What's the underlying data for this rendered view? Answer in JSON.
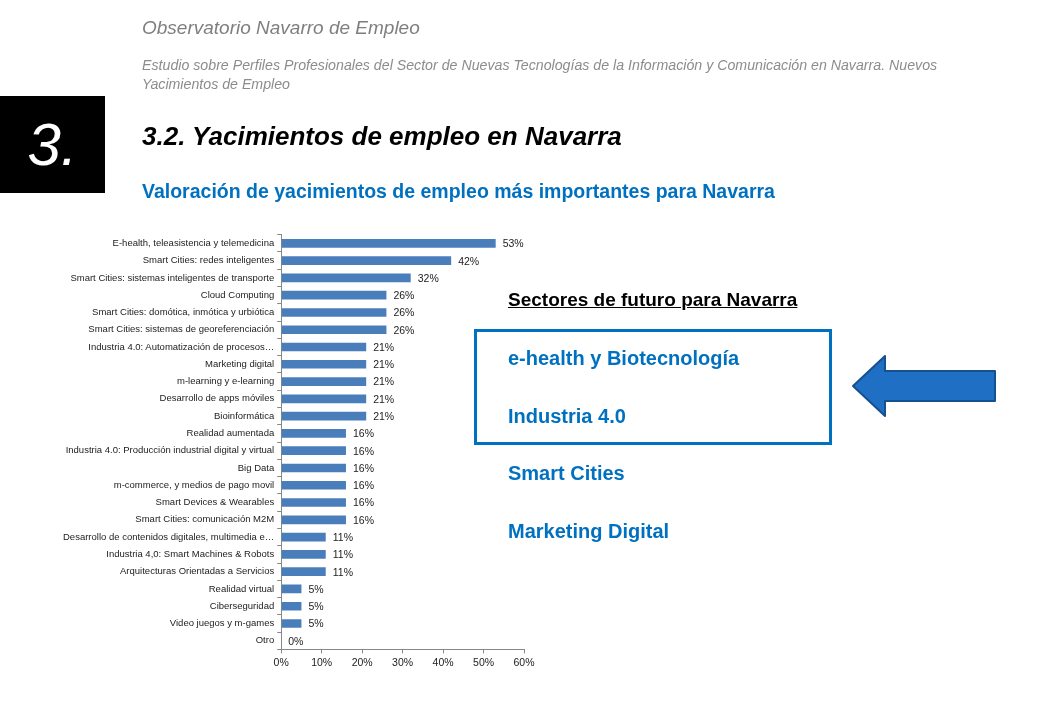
{
  "chart_data": {
    "type": "bar",
    "orientation": "horizontal",
    "title": "3.2. Yacimientos de empleo en Navarra",
    "subtitle": "Valoración de yacimientos de empleo más importantes para Navarra",
    "annotations": [
      "Observatorio Navarro de Empleo",
      "Estudio sobre Perfiles Profesionales del Sector de Nuevas Tecnologías de la Información y Comunicación en Navarra. Nuevos Yacimientos de Empleo",
      "3.",
      "Sectores de futuro para Navarra",
      "e-health y Biotecnología",
      "Industria 4.0",
      "Smart Cities",
      "Marketing Digital"
    ],
    "categories": [
      "E-health, teleasistencia y telemedicina",
      "Smart Cities: redes inteligentes",
      "Smart Cities: sistemas inteligentes de transporte",
      "Cloud Computing",
      "Smart Cities: domótica, inmótica y urbiótica",
      "Smart Cities: sistemas de georeferenciación",
      "Industria 4.0: Automatización de procesos…",
      "Marketing digital",
      "m-learning y e-learning",
      "Desarrollo de apps móviles",
      "Bioinformática",
      "Realidad aumentada",
      "Industria 4.0: Producción industrial digital y virtual",
      "Big Data",
      "m-commerce, y medios de pago movil",
      "Smart Devices & Wearables",
      "Smart Cities: comunicación M2M",
      "Desarrollo de contenidos digitales, multimedia e…",
      "Industria 4,0: Smart Machines & Robots",
      "Arquitecturas Orientadas a Servicios",
      "Realidad virtual",
      "Ciberseguridad",
      "Video juegos y m-games",
      "Otro"
    ],
    "values": [
      53,
      42,
      32,
      26,
      26,
      26,
      21,
      21,
      21,
      21,
      21,
      16,
      16,
      16,
      16,
      16,
      16,
      11,
      11,
      11,
      5,
      5,
      5,
      0
    ],
    "value_labels": [
      "53%",
      "42%",
      "32%",
      "26%",
      "26%",
      "26%",
      "21%",
      "21%",
      "21%",
      "21%",
      "21%",
      "16%",
      "16%",
      "16%",
      "16%",
      "16%",
      "16%",
      "11%",
      "11%",
      "11%",
      "5%",
      "5%",
      "5%",
      "0%"
    ],
    "color": "#4a7ebb",
    "xlim": [
      0,
      60
    ],
    "xticks": [
      {
        "value": 0,
        "label": "0%"
      },
      {
        "value": 10,
        "label": "10%"
      },
      {
        "value": 20,
        "label": "20%"
      },
      {
        "value": 30,
        "label": "30%"
      },
      {
        "value": 40,
        "label": "40%"
      },
      {
        "value": 50,
        "label": "50%"
      },
      {
        "value": 60,
        "label": "60%"
      }
    ],
    "grid": false,
    "legend": false
  }
}
